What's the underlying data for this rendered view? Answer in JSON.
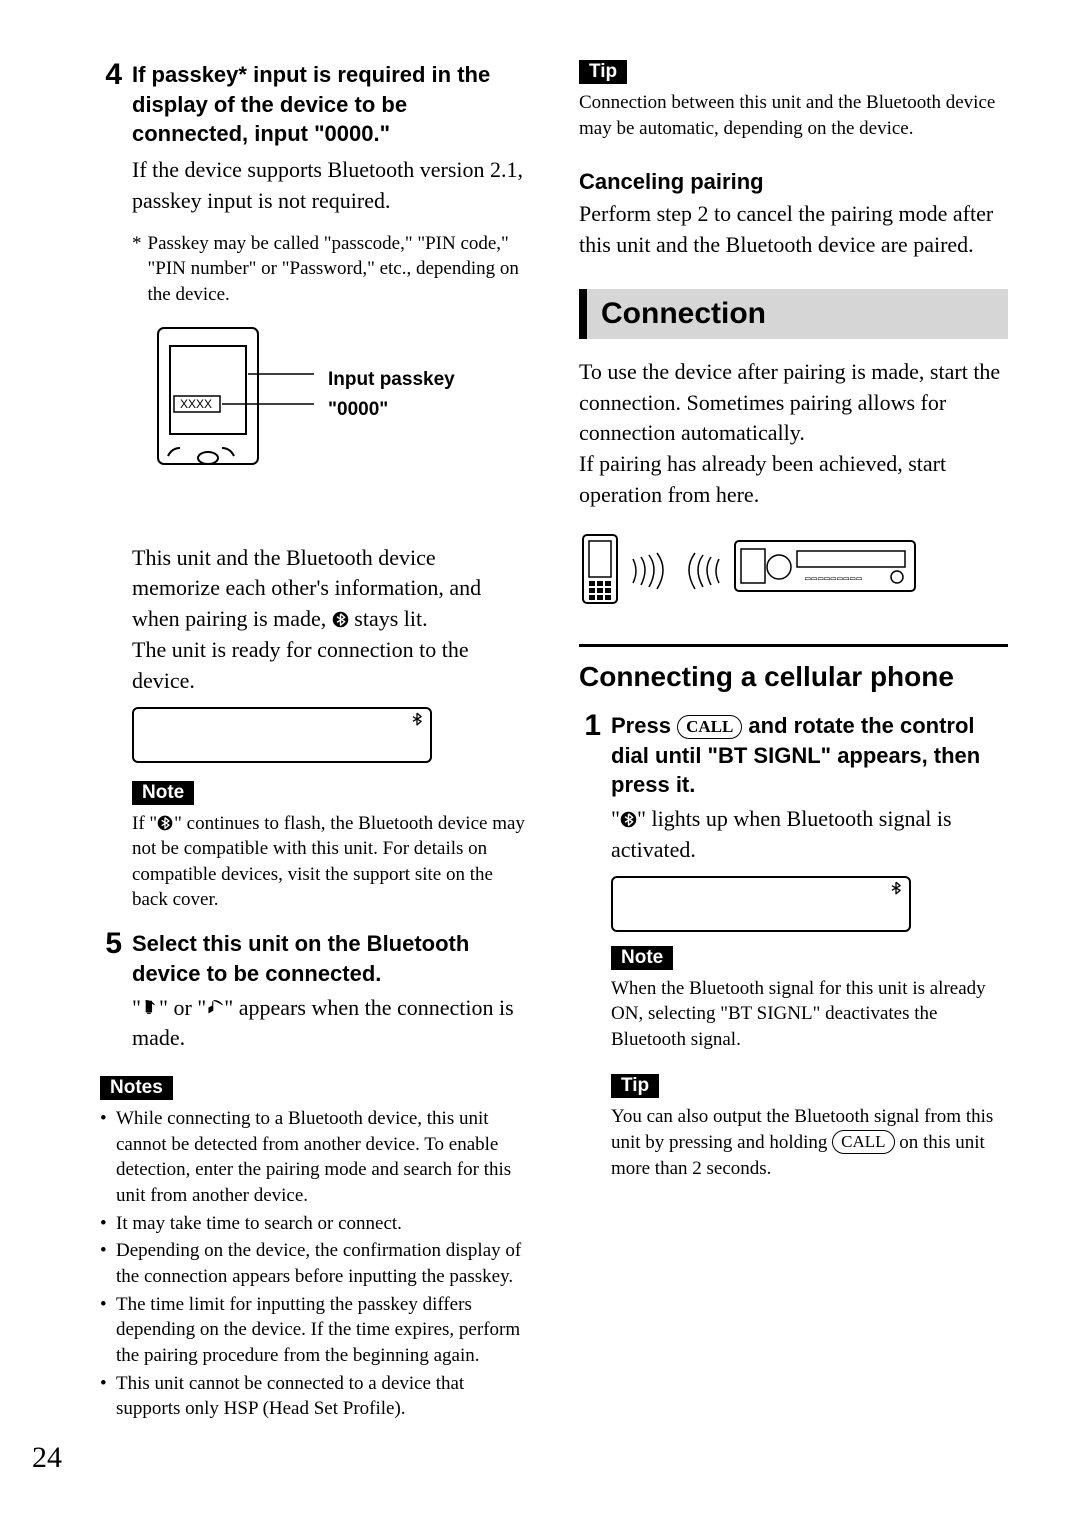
{
  "page_number": "24",
  "left": {
    "step4": {
      "num": "4",
      "head": "If passkey* input is required in the display of the device to be connected, input \"0000.\"",
      "body": "If the device supports Bluetooth version 2.1, passkey input is not required.",
      "foot_asterisk": "*",
      "footnote": "Passkey may be called \"passcode,\" \"PIN code,\" \"PIN number\" or \"Password,\" etc., depending on the device.",
      "diagram_label1": "Input passkey",
      "diagram_label2": "\"0000\"",
      "diagram_xxxx": "XXXX",
      "after_body_1": "This unit and the Bluetooth device memorize each other's information, and when pairing is made, ",
      "after_body_2": " stays lit.",
      "after_body_3": "The unit is ready for connection to the device."
    },
    "note1_label": "Note",
    "note1_a": "If \"",
    "note1_b": "\" continues to flash, the Bluetooth device may not be compatible with this unit. For details on compatible devices, visit the support site on the back cover.",
    "step5": {
      "num": "5",
      "head": "Select this unit on the Bluetooth device to be connected.",
      "body_a": "\"",
      "body_b": "\" or \"",
      "body_c": "\" appears when the connection is made."
    },
    "notes_label": "Notes",
    "notes_items": [
      "While connecting to a Bluetooth device, this unit cannot be detected from another device. To enable detection, enter the pairing mode and search for this unit from another device.",
      "It may take time to search or connect.",
      "Depending on the device, the confirmation display of the connection appears before inputting the passkey.",
      "The time limit for inputting the passkey differs depending on the device. If the time expires, perform the pairing procedure from the beginning again.",
      "This unit cannot be connected to a device that supports only HSP (Head Set Profile)."
    ]
  },
  "right": {
    "tip1_label": "Tip",
    "tip1_body": "Connection between this unit and the Bluetooth device may be automatic, depending on the device.",
    "cancel_head": "Canceling pairing",
    "cancel_body": "Perform step 2 to cancel the pairing mode after this unit and the Bluetooth device are paired.",
    "section_title": "Connection",
    "section_body1": "To use the device after pairing is made, start the connection. Sometimes pairing allows for connection automatically.",
    "section_body2": "If pairing has already been achieved, start operation from here.",
    "h2": "Connecting a cellular phone",
    "step1": {
      "num": "1",
      "head_a": "Press ",
      "call_label": "CALL",
      "head_b": " and rotate the control dial until \"BT SIGNL\" appears, then press it.",
      "body_a": "\"",
      "body_b": "\" lights up when Bluetooth signal is activated."
    },
    "note2_label": "Note",
    "note2_body": "When the Bluetooth signal for this unit is already ON, selecting \"BT SIGNL\" deactivates the Bluetooth signal.",
    "tip2_label": "Tip",
    "tip2_a": "You can also output the Bluetooth signal from this unit by pressing and holding ",
    "tip2_b": " on this unit more than 2 seconds."
  },
  "colors": {
    "banner_bg": "#d6d6d6",
    "fg": "#000000"
  }
}
